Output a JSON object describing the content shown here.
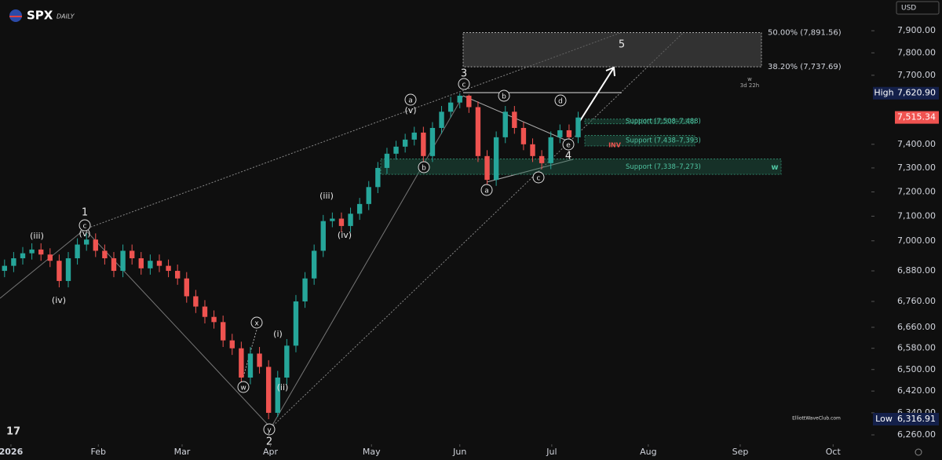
{
  "chart_data": {
    "type": "candlestick",
    "title": "SPX",
    "subtitle": "DAILY",
    "currency": "USD",
    "log_scale": true,
    "grid": false,
    "up_color": "#26a69a",
    "down_color": "#ef5350",
    "xlim": [
      -0.5,
      95.2
    ],
    "xticks": [
      {
        "value": 0.7,
        "label": "2026"
      },
      {
        "value": 10.3,
        "label": "Feb"
      },
      {
        "value": 19.5,
        "label": "Mar"
      },
      {
        "value": 29.2,
        "label": "Apr"
      },
      {
        "value": 40.3,
        "label": "May"
      },
      {
        "value": 50,
        "label": "Jun"
      },
      {
        "value": 60.1,
        "label": "Jul"
      },
      {
        "value": 70.7,
        "label": "Aug"
      },
      {
        "value": 80.8,
        "label": "Sep"
      },
      {
        "value": 91,
        "label": "Oct"
      }
    ],
    "ylim": [
      6229,
      8041
    ],
    "yticks": [
      {
        "value": 7900,
        "label": "7,900.00"
      },
      {
        "value": 7800,
        "label": "7,800.00"
      },
      {
        "value": 7700,
        "label": "7,700.00"
      },
      {
        "value": 7400,
        "label": "7,400.00"
      },
      {
        "value": 7300,
        "label": "7,300.00"
      },
      {
        "value": 7200,
        "label": "7,200.00"
      },
      {
        "value": 7100,
        "label": "7,100.00"
      },
      {
        "value": 7000,
        "label": "7,000.00"
      },
      {
        "value": 6880,
        "label": "6,880.00"
      },
      {
        "value": 6760,
        "label": "6,760.00"
      },
      {
        "value": 6660,
        "label": "6,660.00"
      },
      {
        "value": 6580,
        "label": "6,580.00"
      },
      {
        "value": 6500,
        "label": "6,500.00"
      },
      {
        "value": 6420,
        "label": "6,420.00"
      },
      {
        "value": 6340,
        "label": "6,340.00"
      },
      {
        "value": 6260,
        "label": "6,260.00"
      }
    ],
    "open": [
      6880,
      6900,
      6930,
      6950,
      6965,
      6945,
      6920,
      6840,
      6930,
      6985,
      7005,
      6960,
      6930,
      6880,
      6960,
      6930,
      6890,
      6920,
      6900,
      6880,
      6850,
      6780,
      6740,
      6700,
      6680,
      6610,
      6580,
      6470,
      6560,
      6510,
      6340,
      6470,
      6590,
      6760,
      6850,
      6960,
      7080,
      7090,
      7060,
      7110,
      7150,
      7220,
      7300,
      7360,
      7390,
      7420,
      7450,
      7350,
      7470,
      7540,
      7580,
      7610,
      7560,
      7350,
      7250,
      7430,
      7540,
      7470,
      7400,
      7350,
      7320,
      7430,
      7460,
      7430
    ],
    "high": [
      6925,
      6955,
      6975,
      6990,
      6990,
      6970,
      6945,
      6955,
      7010,
      7030,
      7030,
      6985,
      6955,
      6985,
      6985,
      6955,
      6945,
      6945,
      6925,
      6905,
      6875,
      6805,
      6765,
      6725,
      6705,
      6635,
      6605,
      6585,
      6585,
      6535,
      6495,
      6615,
      6785,
      6875,
      6985,
      7105,
      7115,
      7115,
      7135,
      7175,
      7245,
      7325,
      7385,
      7415,
      7445,
      7475,
      7475,
      7495,
      7565,
      7605,
      7620.9,
      7615,
      7585,
      7375,
      7455,
      7565,
      7565,
      7495,
      7425,
      7375,
      7455,
      7485,
      7485,
      7540
    ],
    "low": [
      6855,
      6875,
      6905,
      6925,
      6920,
      6895,
      6815,
      6815,
      6905,
      6960,
      6935,
      6905,
      6855,
      6855,
      6905,
      6865,
      6865,
      6875,
      6855,
      6825,
      6755,
      6715,
      6675,
      6655,
      6585,
      6555,
      6445,
      6445,
      6485,
      6316.91,
      6325,
      6445,
      6565,
      6735,
      6825,
      6935,
      7055,
      7035,
      7035,
      7085,
      7125,
      7195,
      7275,
      7335,
      7365,
      7395,
      7325,
      7325,
      7445,
      7515,
      7555,
      7535,
      7325,
      7225,
      7225,
      7405,
      7445,
      7375,
      7325,
      7295,
      7295,
      7405,
      7405,
      7405
    ],
    "close": [
      6900,
      6930,
      6950,
      6965,
      6945,
      6920,
      6840,
      6930,
      6985,
      7005,
      6960,
      6930,
      6880,
      6960,
      6930,
      6890,
      6920,
      6900,
      6880,
      6850,
      6780,
      6740,
      6700,
      6680,
      6610,
      6580,
      6470,
      6560,
      6510,
      6340,
      6470,
      6590,
      6760,
      6850,
      6960,
      7080,
      7090,
      7060,
      7110,
      7150,
      7220,
      7300,
      7360,
      7390,
      7420,
      7450,
      7350,
      7470,
      7540,
      7580,
      7610,
      7560,
      7350,
      7250,
      7430,
      7540,
      7470,
      7400,
      7350,
      7320,
      7430,
      7460,
      7430,
      7515
    ],
    "fib_levels": [
      {
        "value": 7891.56,
        "label": "50.00% (7,891.56)"
      },
      {
        "value": 7737.69,
        "label": "38.20% (7,737.69)"
      }
    ],
    "zones": [
      {
        "label": "Support (7,508–7,488)",
        "high": 7508,
        "low": 7488
      },
      {
        "label": "Support (7,438–7,393)",
        "high": 7438,
        "low": 7393
      },
      {
        "label": "Support (7,338–7,273)",
        "high": 7338,
        "low": 7273
      }
    ],
    "high_marker": {
      "label": "High",
      "value": 7620.9,
      "value_label": "7,620.90"
    },
    "last_price": {
      "value": 7515.34,
      "label": "7,515.34"
    },
    "low_marker": {
      "label": "Low",
      "value": 6316.91,
      "value_label": "6,316.91"
    },
    "wave_labels": [
      "1",
      "c",
      "(v)",
      "(iii)",
      "(iv)",
      "x",
      "(i)",
      "(ii)",
      "w",
      "y",
      "2",
      "(iii)",
      "(iv)",
      "a",
      "(v)",
      "b",
      "3",
      "c",
      "b",
      "d",
      "a",
      "c",
      "e",
      "4",
      "5",
      "w",
      "3d 22h",
      "INV",
      "w",
      "ElliottWaveClub.com"
    ]
  }
}
